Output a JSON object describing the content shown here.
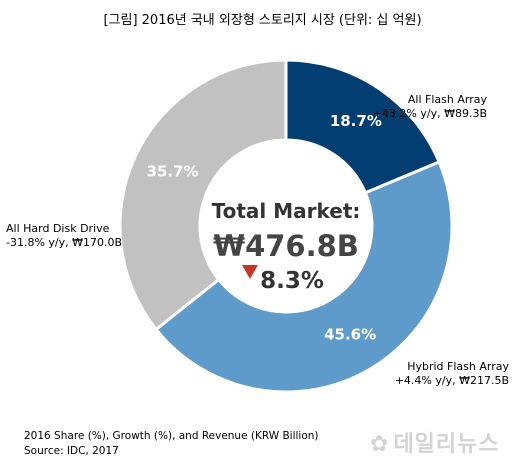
{
  "title": "[그림] 2016년 국내 외장형 스토리지 시장 (단위: 십 억원)",
  "chart_data": {
    "type": "pie",
    "slices": [
      {
        "name": "All Flash Array",
        "share_label": "18.7%",
        "value": 18.7,
        "growth": "+43.2% y/y, ₩89.3B",
        "color": "#033e72"
      },
      {
        "name": "Hybrid Flash Array",
        "share_label": "45.6%",
        "value": 45.6,
        "growth": "+4.4% y/y, ₩217.5B",
        "color": "#5f9bca"
      },
      {
        "name": "All Hard Disk Drive",
        "share_label": "35.7%",
        "value": 35.7,
        "growth": "-31.8% y/y, ₩170.0B",
        "color": "#c1c1c1"
      }
    ],
    "center": {
      "label": "Total Market:",
      "total": "₩476.8B",
      "change": "8.3%",
      "change_color": "#c0392b"
    }
  },
  "footnotes": {
    "line1": "2016 Share (%), Growth (%), and Revenue (KRW Billion)",
    "line2": "Source: IDC, 2017"
  },
  "watermark": "데일리뉴스"
}
